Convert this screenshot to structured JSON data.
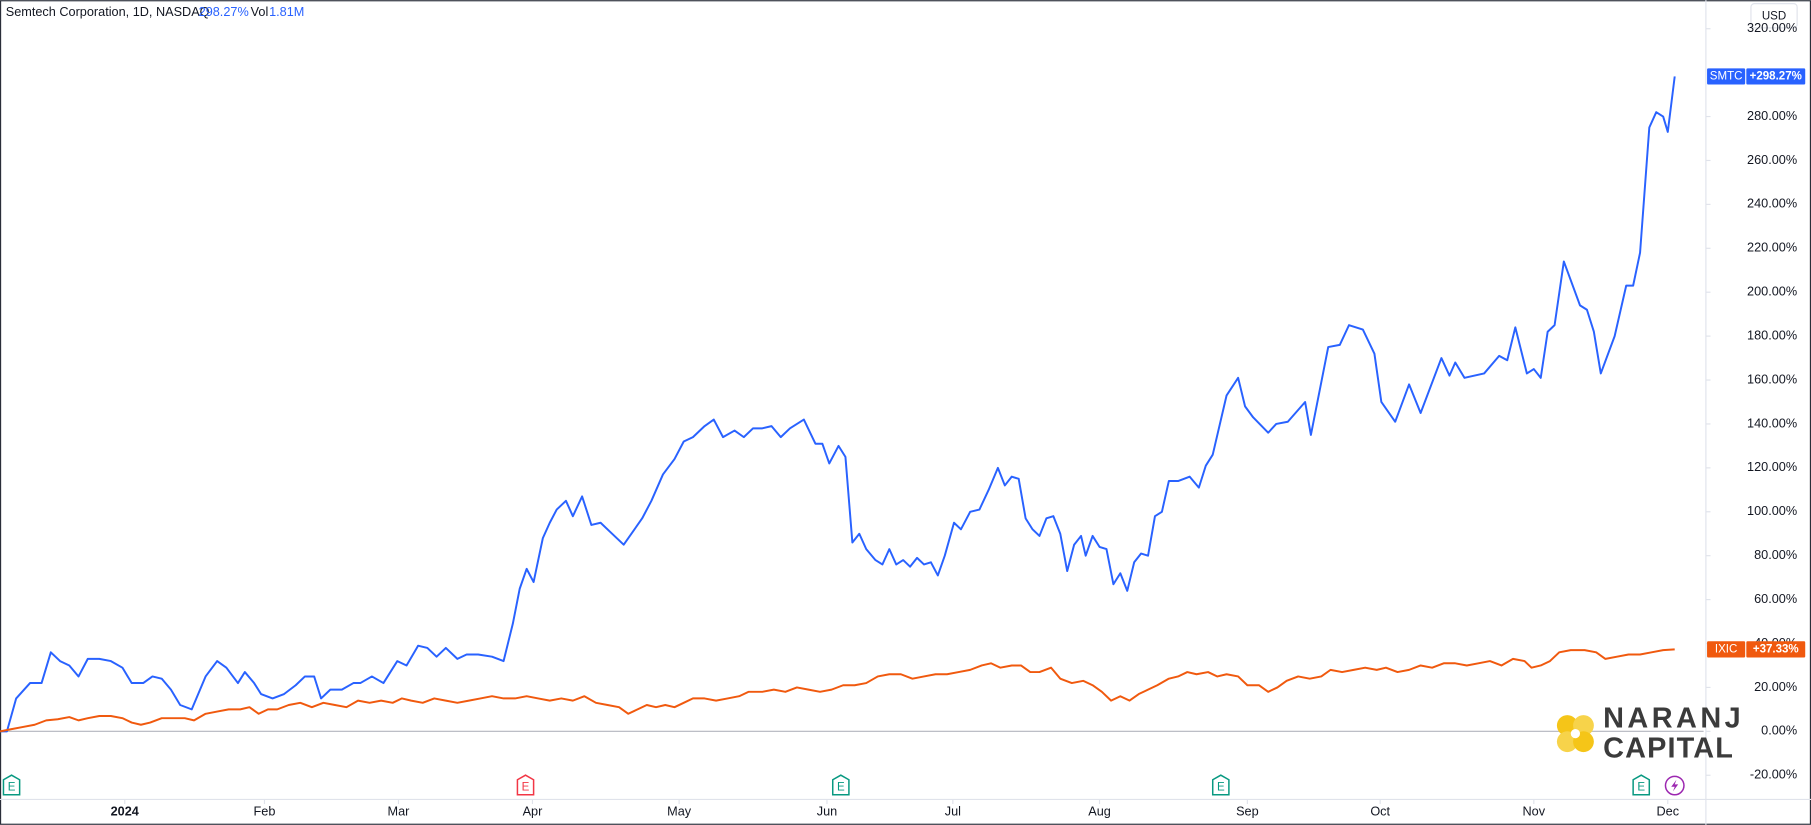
{
  "chart_data": {
    "type": "line",
    "header": {
      "symbol": "Semtech Corporation, 1D, NASDAQ",
      "change": "298.27%",
      "vol_label": "Vol",
      "vol_value": "1.81M"
    },
    "currency": "USD",
    "logo": {
      "line1": "NARANJ",
      "line2": "CAPITAL"
    },
    "xlim": [
      0,
      1475
    ],
    "xticks": [
      {
        "value": 108,
        "label": "2024"
      },
      {
        "value": 229,
        "label": "Feb"
      },
      {
        "value": 345,
        "label": "Mar"
      },
      {
        "value": 461,
        "label": "Apr"
      },
      {
        "value": 588,
        "label": "May"
      },
      {
        "value": 716,
        "label": "Jun"
      },
      {
        "value": 825,
        "label": "Jul"
      },
      {
        "value": 952,
        "label": "Aug"
      },
      {
        "value": 1080,
        "label": "Sep"
      },
      {
        "value": 1195,
        "label": "Oct"
      },
      {
        "value": 1328,
        "label": "Nov"
      },
      {
        "value": 1444,
        "label": "Dec"
      }
    ],
    "ylim": [
      -31,
      333
    ],
    "yticks": [
      {
        "value": -20,
        "label": "-20.00%"
      },
      {
        "value": 0,
        "label": "0.00%"
      },
      {
        "value": 20,
        "label": "20.00%"
      },
      {
        "value": 40,
        "label": "40.00%"
      },
      {
        "value": 60,
        "label": "60.00%"
      },
      {
        "value": 80,
        "label": "80.00%"
      },
      {
        "value": 100,
        "label": "100.00%"
      },
      {
        "value": 120,
        "label": "120.00%"
      },
      {
        "value": 140,
        "label": "140.00%"
      },
      {
        "value": 160,
        "label": "160.00%"
      },
      {
        "value": 180,
        "label": "180.00%"
      },
      {
        "value": 200,
        "label": "200.00%"
      },
      {
        "value": 220,
        "label": "220.00%"
      },
      {
        "value": 240,
        "label": "240.00%"
      },
      {
        "value": 260,
        "label": "260.00%"
      },
      {
        "value": 280,
        "label": "280.00%"
      },
      {
        "value": 320,
        "label": "320.00%"
      }
    ],
    "grid": false,
    "series": [
      {
        "name": "SMTC",
        "color": "#2962ff",
        "last_label": "+298.27%",
        "x": [
          0,
          6,
          14,
          26,
          36,
          44,
          52,
          60,
          68,
          76,
          86,
          96,
          106,
          114,
          124,
          132,
          140,
          148,
          156,
          166,
          178,
          188,
          196,
          206,
          212,
          220,
          226,
          236,
          246,
          256,
          264,
          272,
          278,
          286,
          296,
          306,
          312,
          322,
          332,
          344,
          352,
          362,
          370,
          378,
          386,
          396,
          404,
          414,
          426,
          436,
          444,
          450,
          456,
          462,
          470,
          476,
          482,
          490,
          496,
          504,
          512,
          520,
          528,
          540,
          548,
          556,
          564,
          574,
          584,
          592,
          600,
          610,
          618,
          626,
          636,
          644,
          652,
          660,
          668,
          676,
          684,
          690,
          696,
          706,
          712,
          718,
          726,
          732,
          738,
          744,
          750,
          758,
          764,
          770,
          776,
          782,
          788,
          794,
          800,
          806,
          812,
          818,
          826,
          832,
          840,
          848,
          856,
          864,
          870,
          876,
          882,
          888,
          894,
          900,
          906,
          912,
          918,
          924,
          930,
          936,
          940,
          946,
          952,
          958,
          964,
          970,
          976,
          982,
          988,
          994,
          1000,
          1006,
          1012,
          1020,
          1030,
          1038,
          1044,
          1050,
          1062,
          1072,
          1078,
          1085,
          1098,
          1105,
          1115,
          1130,
          1135,
          1150,
          1160,
          1168,
          1180,
          1190,
          1196,
          1208,
          1220,
          1230,
          1248,
          1255,
          1260,
          1268,
          1285,
          1298,
          1305,
          1312,
          1322,
          1328,
          1334,
          1340,
          1346,
          1354,
          1368,
          1374,
          1380,
          1386,
          1398,
          1408,
          1414,
          1420,
          1428,
          1434,
          1440,
          1444,
          1450
        ],
        "values": [
          0,
          0,
          15,
          22,
          22,
          36,
          32,
          30,
          25,
          33,
          33,
          32,
          29,
          22,
          22,
          25,
          24,
          19,
          12,
          10,
          25,
          32,
          29,
          22,
          27,
          22,
          17,
          15,
          17,
          21,
          25,
          25,
          15,
          19,
          19,
          22,
          22,
          25,
          22,
          32,
          30,
          39,
          38,
          34,
          38,
          33,
          35,
          35,
          34,
          32,
          49,
          65,
          74,
          68,
          88,
          95,
          101,
          105,
          98,
          107,
          94,
          95,
          91,
          85,
          91,
          97,
          105,
          117,
          124,
          132,
          134,
          139,
          142,
          134,
          137,
          134,
          138,
          138,
          139,
          134,
          138,
          140,
          142,
          131,
          131,
          122,
          130,
          125,
          86,
          90,
          83,
          78,
          76,
          83,
          76,
          78,
          75,
          79,
          76,
          77,
          71,
          80,
          95,
          92,
          100,
          101,
          110,
          120,
          112,
          116,
          115,
          97,
          92,
          89,
          97,
          98,
          90,
          73,
          85,
          89,
          80,
          89,
          84,
          83,
          67,
          72,
          64,
          77,
          81,
          80,
          98,
          100,
          114,
          114,
          116,
          111,
          121,
          126,
          153,
          161,
          148,
          143,
          136,
          140,
          141,
          150,
          135,
          175,
          176,
          185,
          183,
          172,
          150,
          141,
          158,
          145,
          170,
          162,
          168,
          161,
          163,
          171,
          169,
          184,
          163,
          165,
          161,
          182,
          185,
          214,
          194,
          192,
          182,
          163,
          180,
          203,
          203,
          218,
          275,
          282,
          280,
          273,
          298.27
        ]
      },
      {
        "name": "IXIC",
        "color": "#f0590e",
        "last_label": "+37.33%",
        "x": [
          0,
          10,
          20,
          30,
          40,
          50,
          60,
          68,
          76,
          86,
          96,
          106,
          114,
          122,
          130,
          140,
          150,
          160,
          168,
          178,
          188,
          198,
          208,
          216,
          224,
          232,
          240,
          250,
          260,
          270,
          280,
          290,
          300,
          310,
          320,
          330,
          340,
          348,
          356,
          366,
          376,
          386,
          396,
          406,
          416,
          426,
          436,
          446,
          456,
          466,
          476,
          486,
          496,
          506,
          516,
          526,
          536,
          544,
          552,
          560,
          568,
          576,
          584,
          592,
          600,
          610,
          620,
          630,
          640,
          648,
          660,
          670,
          680,
          690,
          700,
          710,
          720,
          730,
          740,
          750,
          760,
          770,
          780,
          790,
          800,
          810,
          820,
          830,
          840,
          850,
          858,
          866,
          876,
          884,
          892,
          900,
          910,
          918,
          928,
          938,
          946,
          954,
          962,
          970,
          978,
          986,
          994,
          1002,
          1012,
          1020,
          1028,
          1036,
          1046,
          1054,
          1062,
          1072,
          1080,
          1090,
          1098,
          1106,
          1114,
          1124,
          1134,
          1144,
          1152,
          1162,
          1172,
          1182,
          1192,
          1200,
          1210,
          1220,
          1230,
          1240,
          1250,
          1260,
          1270,
          1280,
          1290,
          1300,
          1310,
          1320,
          1326,
          1334,
          1342,
          1350,
          1360,
          1372,
          1382,
          1390,
          1400,
          1410,
          1420,
          1430,
          1440,
          1450
        ],
        "values": [
          0,
          1,
          2,
          3,
          5,
          5.5,
          6.5,
          5,
          6,
          7,
          7,
          6,
          4,
          3,
          4,
          6,
          6,
          6,
          5,
          8,
          9,
          10,
          10,
          11,
          8,
          10,
          10,
          12,
          13,
          11,
          13,
          12,
          11,
          14,
          13,
          14,
          13,
          15,
          14,
          13,
          15,
          14,
          13,
          14,
          15,
          16,
          15,
          15,
          16,
          15,
          14,
          15,
          14,
          16,
          13,
          12,
          11,
          8,
          10,
          12,
          11,
          12,
          11,
          13,
          15,
          15,
          14,
          15,
          16,
          18,
          18,
          19,
          18,
          20,
          19,
          18,
          19,
          21,
          21,
          22,
          25,
          26,
          26,
          24,
          25,
          26,
          26,
          27,
          28,
          30,
          31,
          29,
          30,
          30,
          27,
          27,
          29,
          24,
          22,
          23,
          21,
          18,
          14,
          16,
          14,
          17,
          19,
          21,
          24,
          25,
          27,
          26,
          27,
          25,
          26,
          25,
          21,
          21,
          18,
          20,
          23,
          25,
          24,
          25,
          28,
          27,
          28,
          29,
          28,
          29,
          27,
          28,
          30,
          29,
          31,
          31,
          30,
          31,
          32,
          30,
          33,
          32,
          29,
          30,
          32,
          36,
          37,
          37,
          36,
          33,
          34,
          35,
          35,
          36,
          37,
          37.33
        ]
      }
    ],
    "events": [
      {
        "x": 10,
        "label": "E",
        "color": "#089981"
      },
      {
        "x": 455,
        "label": "E",
        "color": "#f23645"
      },
      {
        "x": 728,
        "label": "E",
        "color": "#089981"
      },
      {
        "x": 1057,
        "label": "E",
        "color": "#089981"
      },
      {
        "x": 1421,
        "label": "E",
        "color": "#089981"
      },
      {
        "x": 1450,
        "color": "#9c27b0"
      }
    ]
  }
}
